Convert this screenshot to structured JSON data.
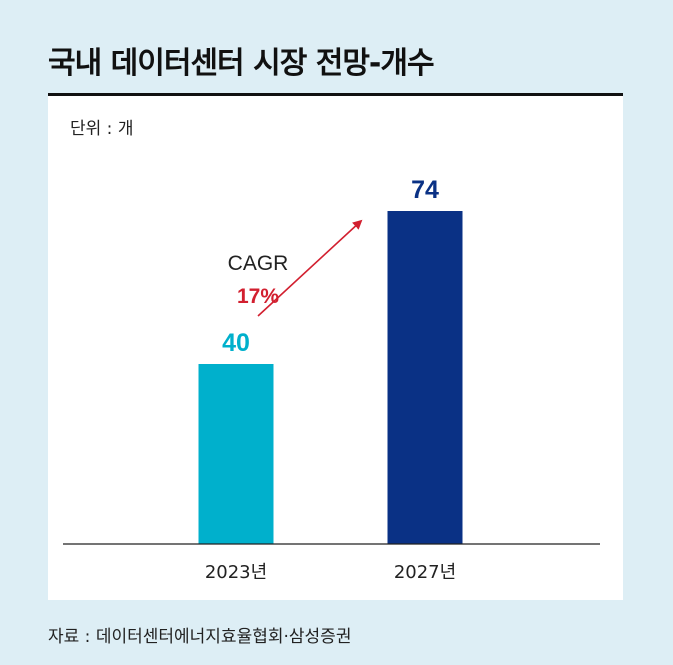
{
  "title": "국내 데이터센터 시장 전망-개수",
  "unit_label": "단위 : 개",
  "source": "자료 : 데이터센터에너지효율협회·삼성증권",
  "colors": {
    "background": "#ddeef5",
    "bar_2023": "#00b0cc",
    "bar_2027": "#0a3185",
    "cagr_value": "#d21f2f",
    "arrow": "#d21f2f"
  },
  "chart_data": {
    "type": "bar",
    "categories": [
      "2023년",
      "2027년"
    ],
    "values": [
      40,
      74
    ],
    "annotation": {
      "label": "CAGR",
      "value": "17%"
    },
    "ylim": [
      0,
      100
    ],
    "grid": false,
    "legend": "none"
  }
}
